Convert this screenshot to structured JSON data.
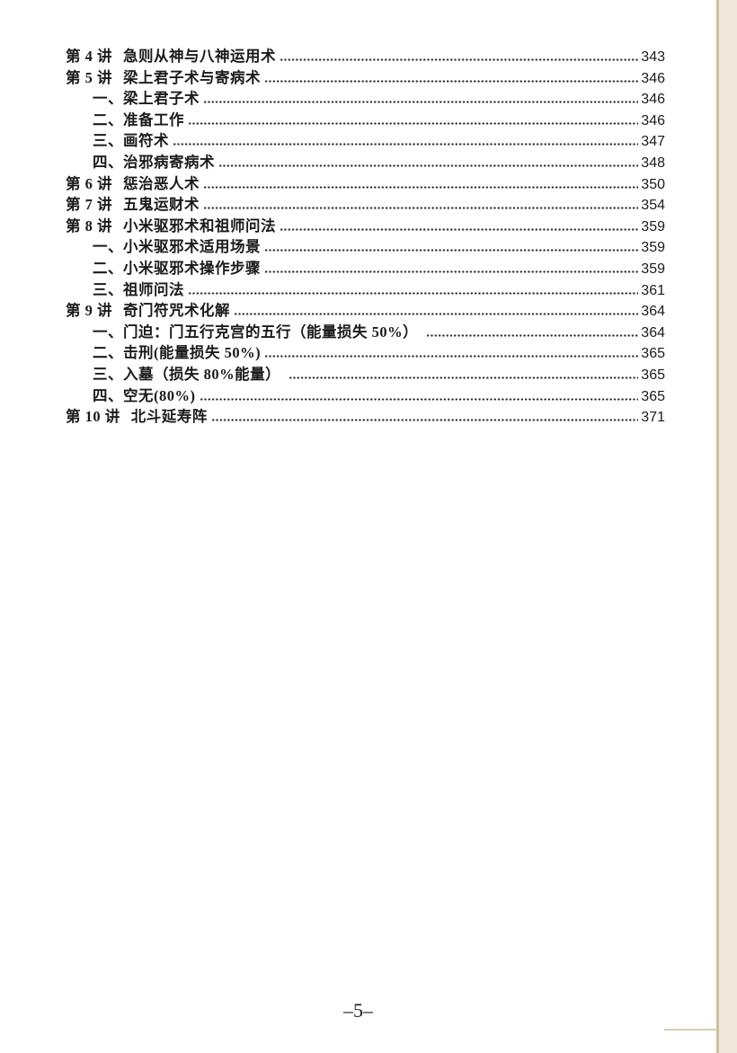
{
  "toc": {
    "entries": [
      {
        "level": 0,
        "label": "第 4 讲",
        "title": "急则从神与八神运用术",
        "page": "343"
      },
      {
        "level": 0,
        "label": "第 5 讲",
        "title": "梁上君子术与寄病术",
        "page": "346"
      },
      {
        "level": 1,
        "label": "一、",
        "title": "梁上君子术",
        "page": "346"
      },
      {
        "level": 1,
        "label": "二、",
        "title": "准备工作",
        "page": "346"
      },
      {
        "level": 1,
        "label": "三、",
        "title": "画符术",
        "page": "347"
      },
      {
        "level": 1,
        "label": "四、",
        "title": "治邪病寄病术",
        "page": "348"
      },
      {
        "level": 0,
        "label": "第 6 讲",
        "title": "惩治恶人术",
        "page": "350"
      },
      {
        "level": 0,
        "label": "第 7 讲",
        "title": "五鬼运财术",
        "page": "354"
      },
      {
        "level": 0,
        "label": "第 8 讲",
        "title": "小米驱邪术和祖师问法",
        "page": "359"
      },
      {
        "level": 1,
        "label": "一、",
        "title": "小米驱邪术适用场景",
        "page": "359"
      },
      {
        "level": 1,
        "label": "二、",
        "title": "小米驱邪术操作步骤",
        "page": "359"
      },
      {
        "level": 1,
        "label": "三、",
        "title": "祖师问法",
        "page": "361"
      },
      {
        "level": 0,
        "label": "第 9 讲",
        "title": "奇门符咒术化解",
        "page": "364"
      },
      {
        "level": 1,
        "label": "一、",
        "title": "门迫：门五行克宫的五行（能量损失 50%） ",
        "page": "364"
      },
      {
        "level": 1,
        "label": "二、",
        "title": "击刑(能量损失 50%)",
        "page": "365"
      },
      {
        "level": 1,
        "label": "三、",
        "title": "入墓（损失 80%能量） ",
        "page": "365"
      },
      {
        "level": 1,
        "label": "四、",
        "title": "空无(80%)",
        "page": "365"
      },
      {
        "level": 0,
        "label": "第 10 讲",
        "title": "北斗延寿阵",
        "page": "371"
      }
    ]
  },
  "footer": {
    "page_number": "–5–"
  },
  "colors": {
    "paper": "#ffffff",
    "text": "#1b1b1b",
    "scan_edge_line": "#cdc0a2",
    "scan_edge_fill": "#eee9dc"
  }
}
